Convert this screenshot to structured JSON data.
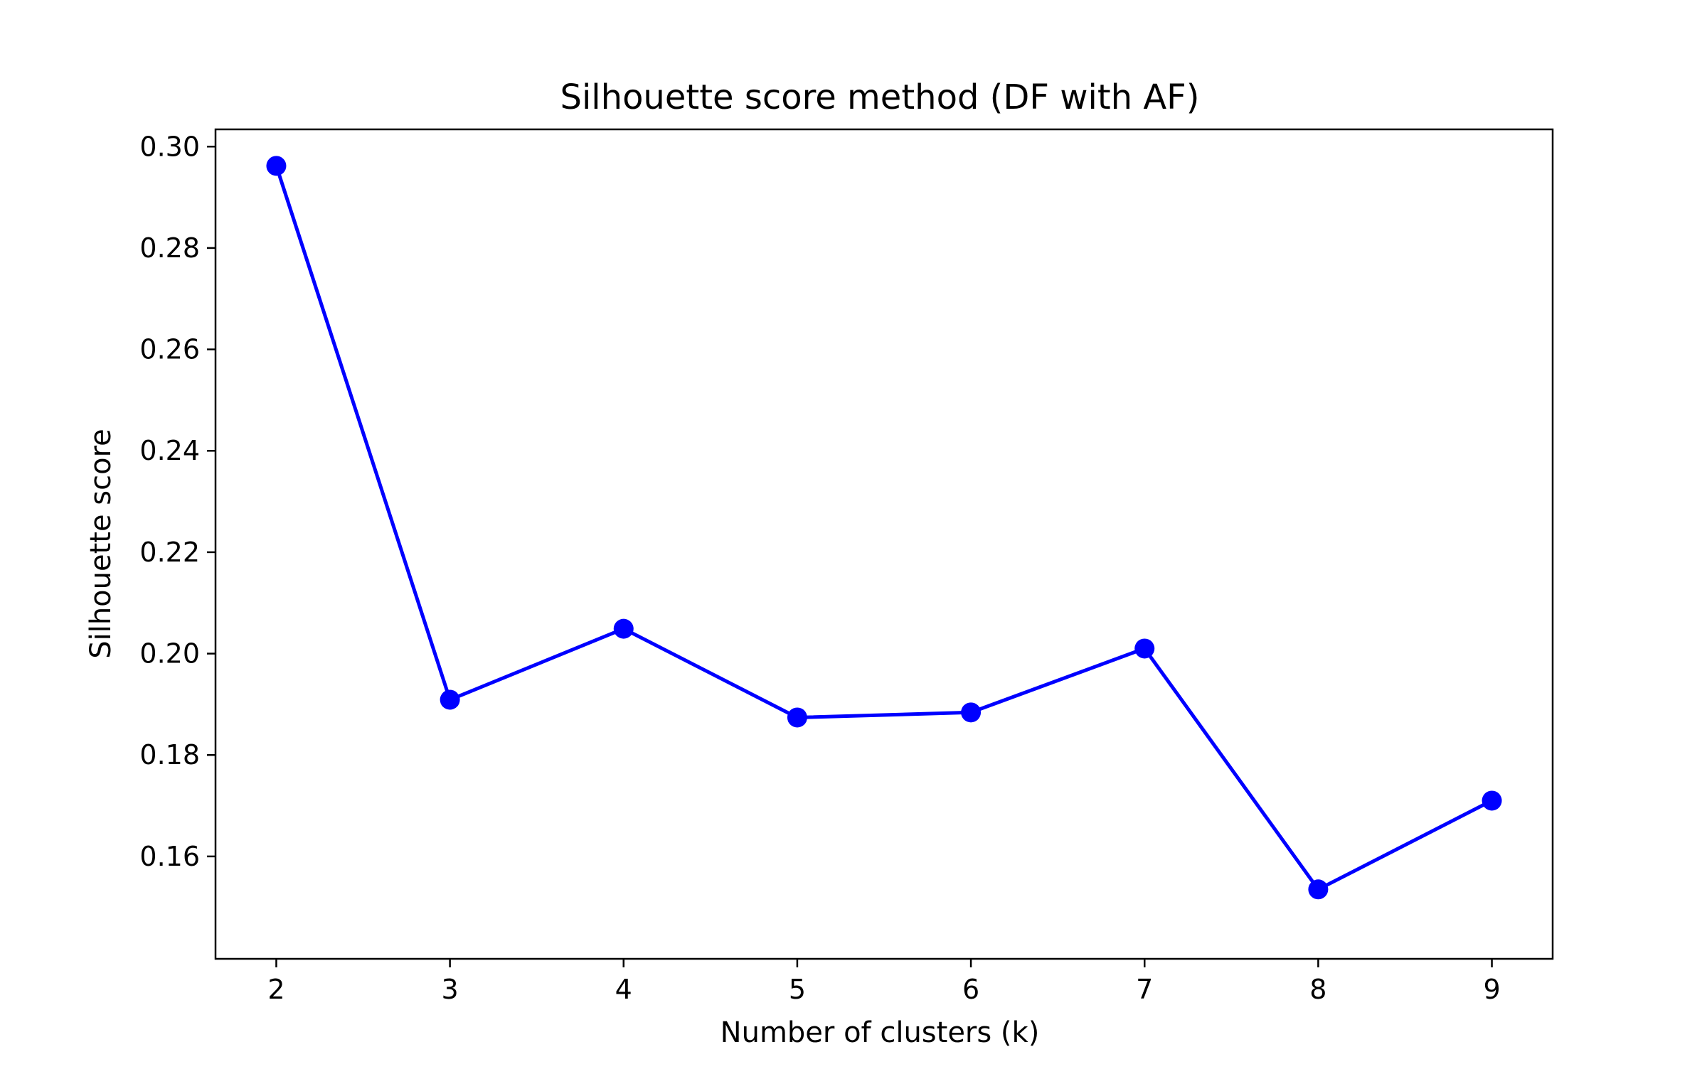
{
  "chart_data": {
    "type": "line",
    "title": "Silhouette score method (DF with AF)",
    "xlabel": "Number of clusters (k)",
    "ylabel": "Silhouette score",
    "x": [
      2,
      3,
      4,
      5,
      6,
      7,
      8,
      9
    ],
    "series": [
      {
        "values": [
          0.2962,
          0.1909,
          0.2049,
          0.1874,
          0.1884,
          0.201,
          0.1535,
          0.171
        ],
        "color": "#0000ff",
        "marker": "circle"
      }
    ],
    "xticks": [
      "2",
      "3",
      "4",
      "5",
      "6",
      "7",
      "8",
      "9"
    ],
    "yticks": [
      "0.16",
      "0.18",
      "0.20",
      "0.22",
      "0.24",
      "0.26",
      "0.28",
      "0.30"
    ],
    "xlim": [
      1.65,
      9.35
    ],
    "ylim": [
      0.1398,
      0.3034
    ],
    "grid": false,
    "legend": false
  }
}
